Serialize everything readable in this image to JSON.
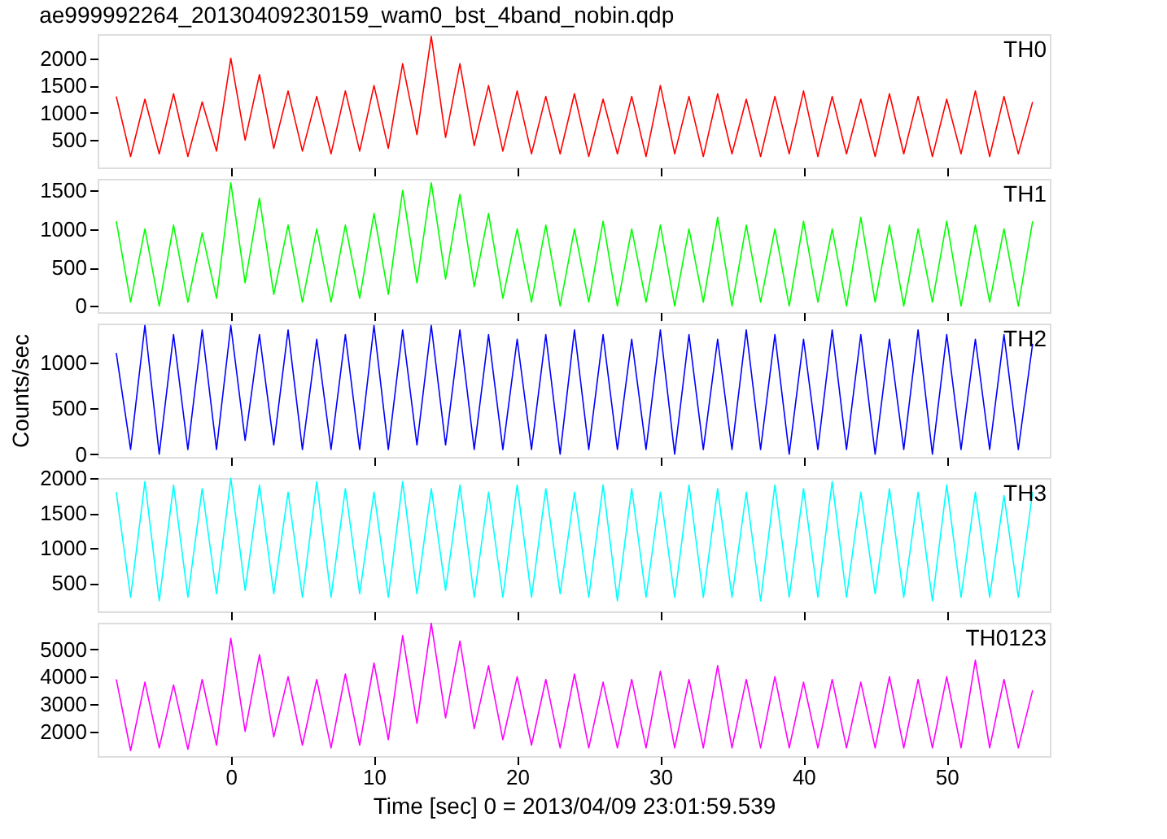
{
  "chart_data": [
    {
      "type": "line",
      "title": "ae999992264_20130409230159_wam0_bst_4band_nobin.qdp",
      "tick_labels": "y",
      "xlim": [
        -9.3,
        57.2
      ],
      "xticks": [
        0,
        10,
        20,
        30,
        40,
        50
      ],
      "ylim": [
        0,
        2440
      ],
      "yticks": [
        500,
        1000,
        1500,
        2000
      ],
      "grid": false,
      "x": [
        -8,
        -7,
        -6,
        -5,
        -4,
        -3,
        -2,
        -1,
        0,
        1,
        2,
        3,
        4,
        5,
        6,
        7,
        8,
        9,
        10,
        11,
        12,
        13,
        14,
        15,
        16,
        17,
        18,
        19,
        20,
        21,
        22,
        23,
        24,
        25,
        26,
        27,
        28,
        29,
        30,
        31,
        32,
        33,
        34,
        35,
        36,
        37,
        38,
        39,
        40,
        41,
        42,
        43,
        44,
        45,
        46,
        47,
        48,
        49,
        50,
        51,
        52,
        53,
        54,
        55,
        56
      ],
      "series": [
        {
          "name": "TH0",
          "color": "#ff0000",
          "values": [
            1300,
            200,
            1250,
            250,
            1350,
            200,
            1200,
            300,
            2000,
            500,
            1700,
            350,
            1400,
            300,
            1300,
            250,
            1400,
            300,
            1500,
            350,
            1900,
            600,
            2400,
            550,
            1900,
            400,
            1500,
            300,
            1400,
            250,
            1300,
            250,
            1350,
            200,
            1250,
            250,
            1300,
            200,
            1500,
            250,
            1300,
            200,
            1350,
            250,
            1250,
            200,
            1300,
            250,
            1400,
            200,
            1300,
            250,
            1250,
            200,
            1350,
            250,
            1300,
            200,
            1250,
            250,
            1400,
            200,
            1300,
            250,
            1200
          ]
        }
      ]
    },
    {
      "type": "line",
      "tick_labels": "y",
      "xlim": [
        -9.3,
        57.2
      ],
      "xticks": [
        0,
        10,
        20,
        30,
        40,
        50
      ],
      "ylim": [
        -80,
        1650
      ],
      "yticks": [
        0,
        500,
        1000,
        1500
      ],
      "grid": false,
      "x": [
        -8,
        -7,
        -6,
        -5,
        -4,
        -3,
        -2,
        -1,
        0,
        1,
        2,
        3,
        4,
        5,
        6,
        7,
        8,
        9,
        10,
        11,
        12,
        13,
        14,
        15,
        16,
        17,
        18,
        19,
        20,
        21,
        22,
        23,
        24,
        25,
        26,
        27,
        28,
        29,
        30,
        31,
        32,
        33,
        34,
        35,
        36,
        37,
        38,
        39,
        40,
        41,
        42,
        43,
        44,
        45,
        46,
        47,
        48,
        49,
        50,
        51,
        52,
        53,
        54,
        55,
        56
      ],
      "series": [
        {
          "name": "TH1",
          "color": "#00ff00",
          "values": [
            1100,
            50,
            1000,
            0,
            1050,
            50,
            950,
            100,
            1600,
            300,
            1400,
            150,
            1050,
            50,
            1000,
            50,
            1050,
            100,
            1200,
            150,
            1500,
            300,
            1600,
            350,
            1450,
            250,
            1200,
            100,
            1000,
            50,
            1050,
            0,
            1000,
            50,
            1100,
            0,
            1000,
            50,
            1050,
            0,
            1000,
            50,
            1150,
            0,
            1050,
            50,
            1000,
            0,
            1100,
            50,
            1000,
            0,
            1150,
            50,
            1050,
            0,
            1000,
            50,
            1100,
            0,
            1050,
            50,
            1000,
            0,
            1100
          ]
        }
      ]
    },
    {
      "type": "line",
      "tick_labels": "y",
      "ylabel": "Counts/sec",
      "xlim": [
        -9.3,
        57.2
      ],
      "xticks": [
        0,
        10,
        20,
        30,
        40,
        50
      ],
      "ylim": [
        -30,
        1420
      ],
      "yticks": [
        0,
        500,
        1000
      ],
      "grid": false,
      "x": [
        -8,
        -7,
        -6,
        -5,
        -4,
        -3,
        -2,
        -1,
        0,
        1,
        2,
        3,
        4,
        5,
        6,
        7,
        8,
        9,
        10,
        11,
        12,
        13,
        14,
        15,
        16,
        17,
        18,
        19,
        20,
        21,
        22,
        23,
        24,
        25,
        26,
        27,
        28,
        29,
        30,
        31,
        32,
        33,
        34,
        35,
        36,
        37,
        38,
        39,
        40,
        41,
        42,
        43,
        44,
        45,
        46,
        47,
        48,
        49,
        50,
        51,
        52,
        53,
        54,
        55,
        56
      ],
      "series": [
        {
          "name": "TH2",
          "color": "#0000ff",
          "values": [
            1100,
            50,
            1400,
            0,
            1300,
            50,
            1350,
            50,
            1400,
            150,
            1300,
            100,
            1350,
            50,
            1250,
            50,
            1300,
            50,
            1400,
            50,
            1350,
            100,
            1400,
            100,
            1350,
            50,
            1300,
            50,
            1250,
            50,
            1300,
            0,
            1350,
            50,
            1300,
            50,
            1250,
            50,
            1350,
            0,
            1300,
            50,
            1250,
            50,
            1350,
            50,
            1300,
            0,
            1250,
            50,
            1350,
            50,
            1300,
            0,
            1250,
            50,
            1350,
            0,
            1300,
            50,
            1250,
            50,
            1300,
            50,
            1200
          ]
        }
      ]
    },
    {
      "type": "line",
      "tick_labels": "y",
      "xlim": [
        -9.3,
        57.2
      ],
      "xticks": [
        0,
        10,
        20,
        30,
        40,
        50
      ],
      "ylim": [
        100,
        2000
      ],
      "yticks": [
        500,
        1000,
        1500,
        2000
      ],
      "grid": false,
      "x": [
        -8,
        -7,
        -6,
        -5,
        -4,
        -3,
        -2,
        -1,
        0,
        1,
        2,
        3,
        4,
        5,
        6,
        7,
        8,
        9,
        10,
        11,
        12,
        13,
        14,
        15,
        16,
        17,
        18,
        19,
        20,
        21,
        22,
        23,
        24,
        25,
        26,
        27,
        28,
        29,
        30,
        31,
        32,
        33,
        34,
        35,
        36,
        37,
        38,
        39,
        40,
        41,
        42,
        43,
        44,
        45,
        46,
        47,
        48,
        49,
        50,
        51,
        52,
        53,
        54,
        55,
        56
      ],
      "series": [
        {
          "name": "TH3",
          "color": "#00ffff",
          "values": [
            1800,
            300,
            1950,
            250,
            1900,
            300,
            1850,
            350,
            2000,
            400,
            1900,
            350,
            1800,
            300,
            1950,
            300,
            1850,
            350,
            1800,
            300,
            1950,
            350,
            1850,
            400,
            1900,
            300,
            1800,
            300,
            1900,
            300,
            1850,
            350,
            1800,
            300,
            1900,
            250,
            1850,
            300,
            1800,
            300,
            1900,
            300,
            1850,
            300,
            1800,
            250,
            1900,
            300,
            1850,
            300,
            1950,
            300,
            1800,
            350,
            1850,
            300,
            1800,
            250,
            1900,
            300,
            1800,
            300,
            1750,
            300,
            1800
          ]
        }
      ]
    },
    {
      "type": "line",
      "xlabel": "Time [sec] 0 = 2013/04/09 23:01:59.539",
      "xlim": [
        -9.3,
        57.2
      ],
      "xticks": [
        0,
        10,
        20,
        30,
        40,
        50
      ],
      "ylim": [
        1100,
        5970
      ],
      "yticks": [
        2000,
        3000,
        4000,
        5000
      ],
      "grid": false,
      "x": [
        -8,
        -7,
        -6,
        -5,
        -4,
        -3,
        -2,
        -1,
        0,
        1,
        2,
        3,
        4,
        5,
        6,
        7,
        8,
        9,
        10,
        11,
        12,
        13,
        14,
        15,
        16,
        17,
        18,
        19,
        20,
        21,
        22,
        23,
        24,
        25,
        26,
        27,
        28,
        29,
        30,
        31,
        32,
        33,
        34,
        35,
        36,
        37,
        38,
        39,
        40,
        41,
        42,
        43,
        44,
        45,
        46,
        47,
        48,
        49,
        50,
        51,
        52,
        53,
        54,
        55,
        56
      ],
      "series": [
        {
          "name": "TH0123",
          "color": "#ff00ff",
          "values": [
            3900,
            1300,
            3800,
            1400,
            3700,
            1350,
            3900,
            1500,
            5400,
            2000,
            4800,
            1800,
            4000,
            1500,
            3900,
            1400,
            4100,
            1500,
            4500,
            1700,
            5500,
            2300,
            5950,
            2500,
            5300,
            2100,
            4400,
            1700,
            4000,
            1500,
            3900,
            1400,
            4100,
            1400,
            3800,
            1400,
            3900,
            1400,
            4200,
            1400,
            3900,
            1400,
            4400,
            1400,
            3900,
            1400,
            4000,
            1400,
            3800,
            1400,
            3900,
            1400,
            3800,
            1400,
            4000,
            1400,
            3900,
            1400,
            4000,
            1400,
            4600,
            1400,
            3900,
            1400,
            3500
          ]
        }
      ]
    }
  ]
}
